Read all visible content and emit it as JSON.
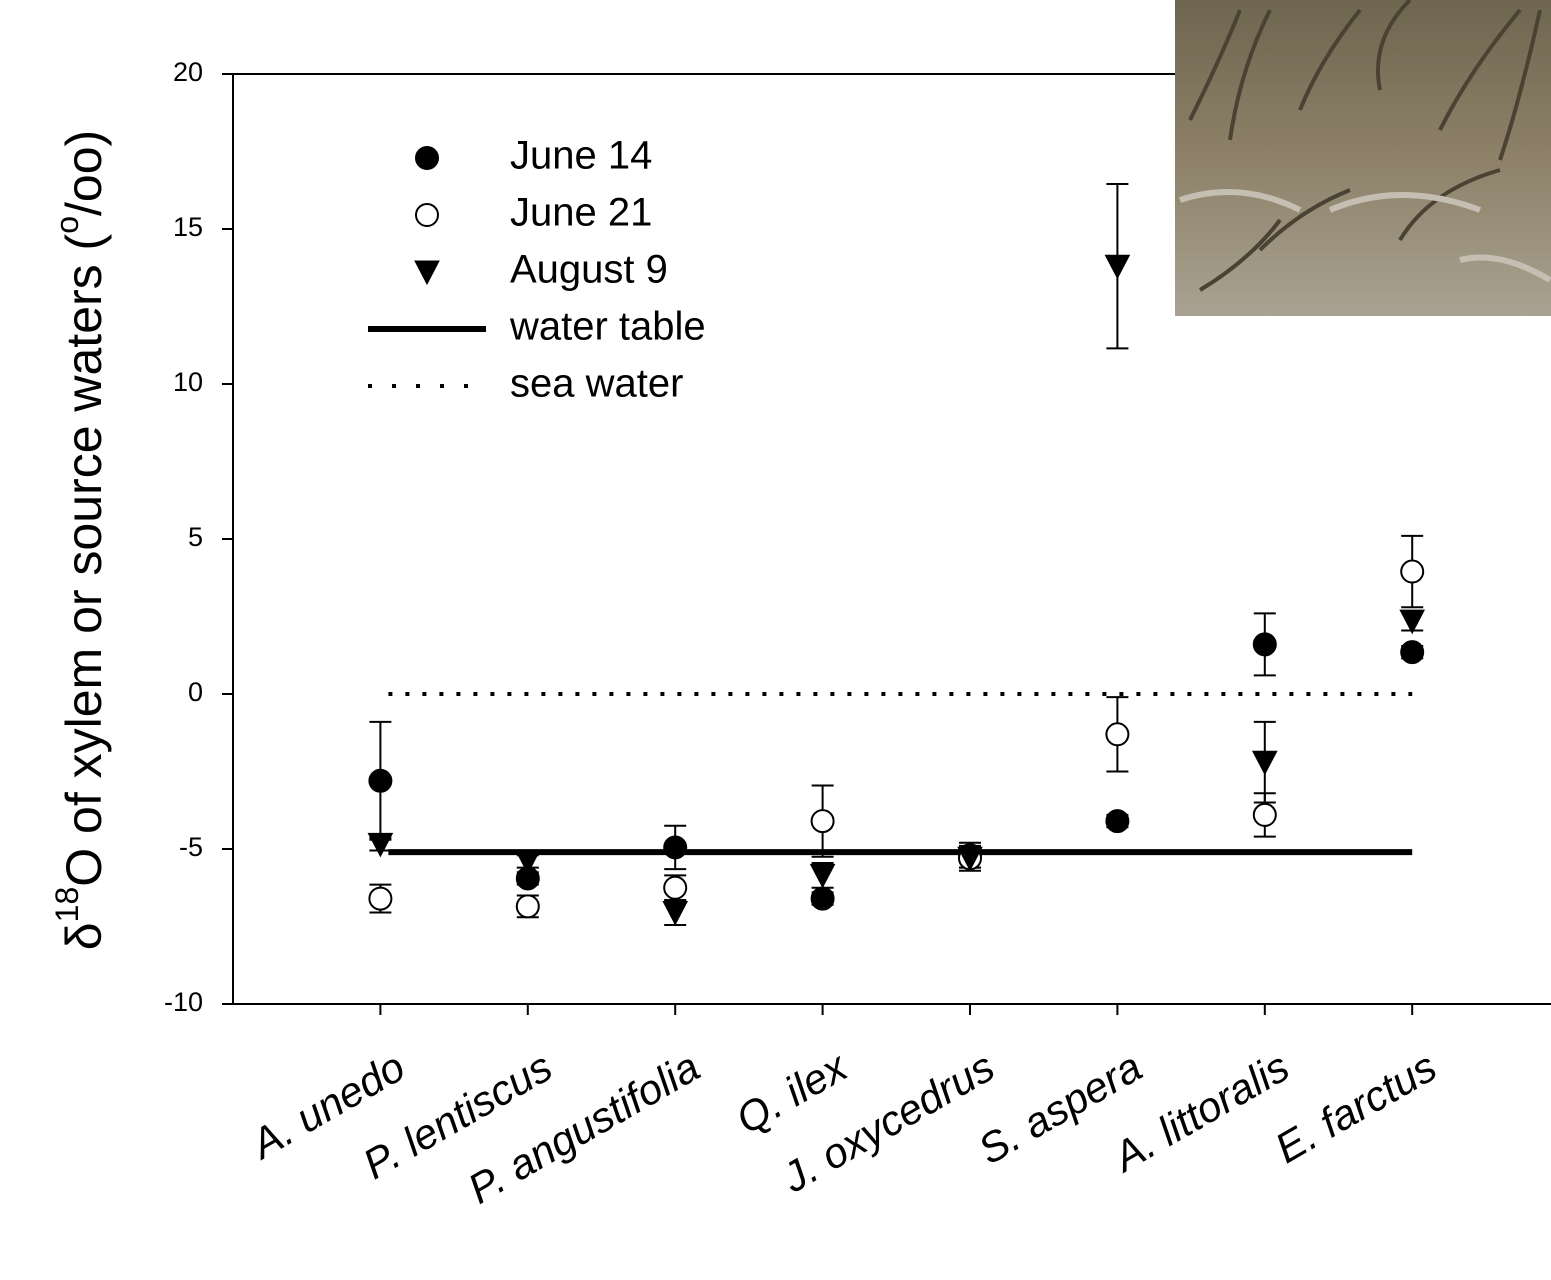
{
  "chart_data": {
    "type": "scatter",
    "y_label": [
      "δ",
      "18",
      "O of xylem or source waters (",
      "o",
      "/oo)"
    ],
    "categories": [
      "A. unedo",
      "P. lentiscus",
      "P. angustifolia",
      "Q. ilex",
      "J. oxycedrus",
      "S. aspera",
      "A. littoralis",
      "E. farctus"
    ],
    "series": [
      {
        "name": "June 14",
        "marker": "circle",
        "color": "#000000",
        "values": [
          -2.8,
          -5.95,
          -4.95,
          -6.6,
          -5.2,
          -4.1,
          1.6,
          1.35
        ],
        "errors": [
          1.9,
          0.2,
          0.7,
          0.2,
          0.4,
          0.2,
          1.0,
          0.2
        ]
      },
      {
        "name": "June 21",
        "marker": "open-circle",
        "color": "#000000",
        "values": [
          -6.6,
          -6.85,
          -6.25,
          -4.1,
          -5.3,
          -1.3,
          -3.9,
          3.95
        ],
        "errors": [
          0.45,
          0.35,
          0.4,
          1.15,
          0.4,
          1.2,
          0.7,
          1.15
        ]
      },
      {
        "name": "August 9",
        "marker": "triangle-down",
        "color": "#000000",
        "values": [
          -4.85,
          -5.4,
          -7.05,
          -5.85,
          -5.3,
          13.8,
          -2.2,
          2.35
        ],
        "errors": [
          0.2,
          0.2,
          0.4,
          0.4,
          0.3,
          2.65,
          1.3,
          0.3
        ]
      }
    ],
    "reference_lines": [
      {
        "name": "water table",
        "value": -5.1,
        "style": "solid"
      },
      {
        "name": "sea water",
        "value": 0,
        "style": "dotted"
      }
    ],
    "ylim": [
      -10,
      20
    ],
    "yticks": [
      -10,
      -5,
      0,
      5,
      10,
      15,
      20
    ]
  }
}
